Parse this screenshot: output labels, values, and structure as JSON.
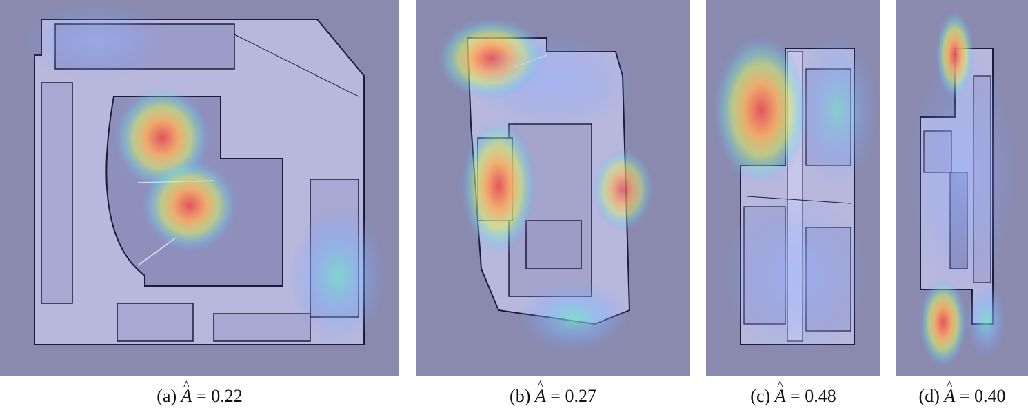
{
  "figures": [
    {
      "panel": "(a)",
      "symbol": "A",
      "equals": "=",
      "value": "0.22"
    },
    {
      "panel": "(b)",
      "symbol": "A",
      "equals": "=",
      "value": "0.27"
    },
    {
      "panel": "(c)",
      "symbol": "A",
      "equals": "=",
      "value": "0.48"
    },
    {
      "panel": "(d)",
      "symbol": "A",
      "equals": "=",
      "value": "0.40"
    }
  ],
  "colors": {
    "background": "#8a8aae",
    "floor": "#b8b8dc",
    "wall": "#1a1a3a",
    "heat_low": "#6a8cff",
    "heat_mid": "#ffe86a",
    "heat_high": "#e8505a"
  }
}
